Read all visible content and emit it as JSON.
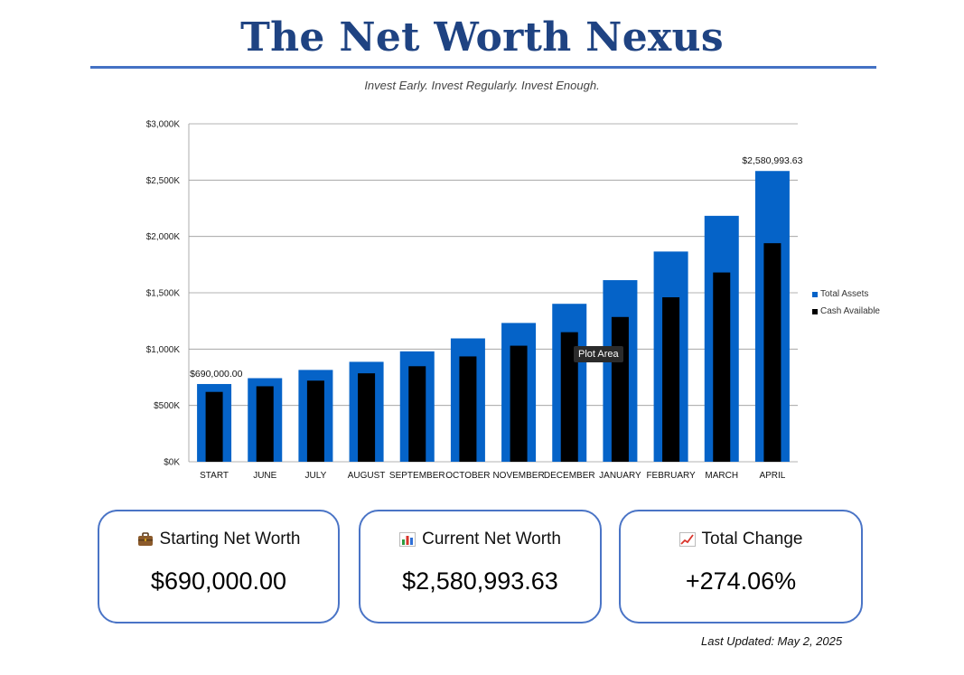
{
  "header": {
    "title": "The Net Worth Nexus",
    "subtitle": "Invest Early. Invest Regularly. Invest Enough."
  },
  "chart_data": {
    "type": "bar",
    "categories": [
      "START",
      "JUNE",
      "JULY",
      "AUGUST",
      "SEPTEMBER",
      "OCTOBER",
      "NOVEMBER",
      "DECEMBER",
      "JANUARY",
      "FEBRUARY",
      "MARCH",
      "APRIL"
    ],
    "series": [
      {
        "name": "Total Assets",
        "color": "#0563c8",
        "values": [
          690000,
          742000,
          815000,
          887000,
          980000,
          1095000,
          1232000,
          1402000,
          1612000,
          1866000,
          2183000,
          2580993.63
        ]
      },
      {
        "name": "Cash Available",
        "color": "#000000",
        "values": [
          620000,
          670000,
          720000,
          785000,
          848000,
          935000,
          1030000,
          1150000,
          1285000,
          1460000,
          1680000,
          1940000
        ]
      }
    ],
    "yticks": [
      "$0K",
      "$500K",
      "$1,000K",
      "$1,500K",
      "$2,000K",
      "$2,500K",
      "$3,000K"
    ],
    "ylim": [
      0,
      3000000
    ],
    "ytick_step": 500000,
    "data_labels": [
      {
        "index": 0,
        "text": "$690,000.00"
      },
      {
        "index": 11,
        "text": "$2,580,993.63"
      }
    ],
    "grid": true,
    "legend_position": "right",
    "tooltip": "Plot Area"
  },
  "cards": [
    {
      "label": "Starting Net Worth",
      "value": "$690,000.00",
      "icon": "briefcase-icon"
    },
    {
      "label": "Current Net Worth",
      "value": "$2,580,993.63",
      "icon": "bar-chart-icon"
    },
    {
      "label": "Total Change",
      "value": "+274.06%",
      "icon": "trend-up-icon"
    }
  ],
  "footer": {
    "last_updated": "Last Updated: May 2, 2025"
  }
}
